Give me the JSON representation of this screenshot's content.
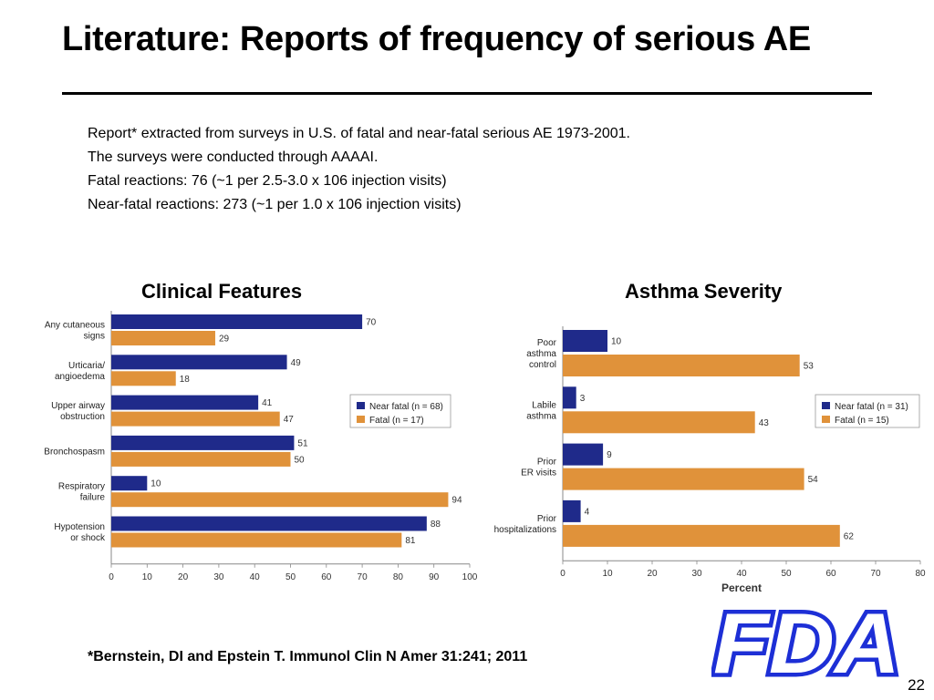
{
  "slide": {
    "title": "Literature:  Reports of frequency of serious AE",
    "intro_lines": [
      "Report* extracted from surveys in U.S. of fatal and near-fatal serious AE 1973-2001.",
      "The surveys were conducted through AAAAI.",
      "Fatal reactions:  76 (~1 per 2.5-3.0 x 106 injection visits)",
      "Near-fatal reactions:  273 (~1 per 1.0 x 106 injection visits)"
    ],
    "citation": "*Bernstein, DI and Epstein T.  Immunol Clin N Amer 31:241; 2011",
    "page_number": "22",
    "logo_text": "FDA"
  },
  "colors": {
    "near_fatal": "#1f2a8a",
    "fatal": "#e0923a",
    "logo": "#1d2fd6"
  },
  "chart_data": [
    {
      "type": "bar",
      "orientation": "horizontal",
      "title": "Clinical Features",
      "categories": [
        [
          "Any cutaneous",
          "signs"
        ],
        [
          "Urticaria/",
          "angioedema"
        ],
        [
          "Upper airway",
          "obstruction"
        ],
        [
          "Bronchospasm"
        ],
        [
          "Respiratory",
          "failure"
        ],
        [
          "Hypotension",
          "or shock"
        ]
      ],
      "series": [
        {
          "name": "Near fatal (n = 68)",
          "values": [
            70,
            49,
            41,
            51,
            10,
            88
          ]
        },
        {
          "name": "Fatal (n = 17)",
          "values": [
            29,
            18,
            47,
            50,
            94,
            81
          ]
        }
      ],
      "xlim": [
        0,
        100
      ],
      "xticks": [
        0,
        10,
        20,
        30,
        40,
        50,
        60,
        70,
        80,
        90,
        100
      ],
      "legend": "right"
    },
    {
      "type": "bar",
      "orientation": "horizontal",
      "title": "Asthma Severity",
      "categories": [
        [
          "Poor",
          "asthma",
          "control"
        ],
        [
          "Labile",
          "asthma"
        ],
        [
          "Prior",
          "ER visits"
        ],
        [
          "Prior",
          "hospitalizations"
        ]
      ],
      "series": [
        {
          "name": "Near fatal (n = 31)",
          "values": [
            10,
            3,
            9,
            4
          ]
        },
        {
          "name": "Fatal (n = 15)",
          "values": [
            53,
            43,
            54,
            62
          ]
        }
      ],
      "xlim": [
        0,
        80
      ],
      "xticks": [
        0,
        10,
        20,
        30,
        40,
        50,
        60,
        70,
        80
      ],
      "xlabel": "Percent",
      "legend": "right"
    }
  ]
}
